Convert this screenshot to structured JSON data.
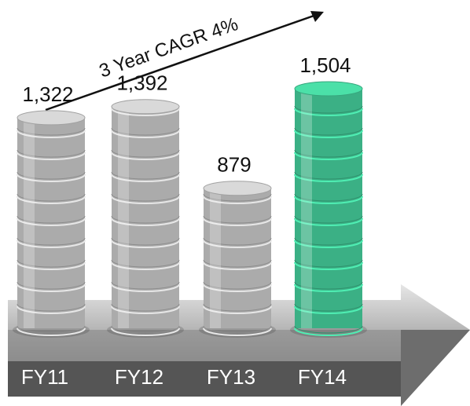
{
  "chart_data": {
    "type": "coin-stack",
    "annotation": "3 Year CAGR 4%",
    "categories": [
      "FY11",
      "FY12",
      "FY13",
      "FY14"
    ],
    "values": [
      1322,
      1392,
      879,
      1504
    ],
    "value_labels": [
      "1,322",
      "1,392",
      "879",
      "1,504"
    ],
    "colors": [
      "#c9c9c9",
      "#c9c9c9",
      "#c9c9c9",
      "#45cf9c"
    ]
  }
}
